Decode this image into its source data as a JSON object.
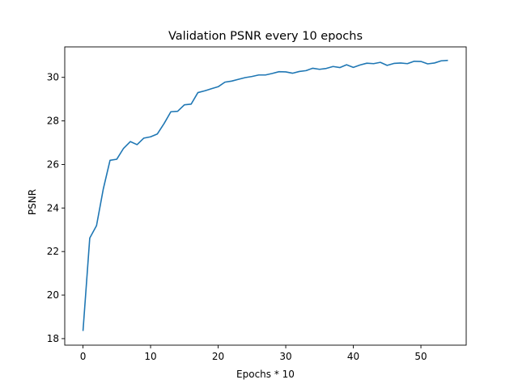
{
  "chart_data": {
    "type": "line",
    "title": "Validation PSNR every 10 epochs",
    "xlabel": "Epochs * 10",
    "ylabel": "PSNR",
    "xlim": [
      -2.7,
      56.7
    ],
    "ylim": [
      17.7,
      31.4
    ],
    "x_ticks": [
      0,
      10,
      20,
      30,
      40,
      50
    ],
    "y_ticks": [
      18,
      20,
      22,
      24,
      26,
      28,
      30
    ],
    "grid": false,
    "line_color": "#1f77b4",
    "series": [
      {
        "x": [
          0,
          1,
          2,
          3,
          4,
          5,
          6,
          7,
          8,
          9,
          10,
          11,
          12,
          13,
          14,
          15,
          16,
          17,
          18,
          19,
          20,
          21,
          22,
          23,
          24,
          25,
          26,
          27,
          28,
          29,
          30,
          31,
          32,
          33,
          34,
          35,
          36,
          37,
          38,
          39,
          40,
          41,
          42,
          43,
          44,
          45,
          46,
          47,
          48,
          49,
          50,
          51,
          52,
          53,
          54
        ],
        "values": [
          18.35,
          22.62,
          23.19,
          24.87,
          26.19,
          26.24,
          26.74,
          27.05,
          26.91,
          27.21,
          27.27,
          27.4,
          27.88,
          28.42,
          28.44,
          28.74,
          28.77,
          29.3,
          29.38,
          29.48,
          29.57,
          29.78,
          29.83,
          29.91,
          29.99,
          30.04,
          30.11,
          30.11,
          30.18,
          30.26,
          30.25,
          30.19,
          30.27,
          30.31,
          30.42,
          30.37,
          30.41,
          30.5,
          30.45,
          30.58,
          30.46,
          30.57,
          30.65,
          30.63,
          30.69,
          30.55,
          30.64,
          30.66,
          30.63,
          30.74,
          30.73,
          30.62,
          30.66,
          30.76,
          30.78
        ]
      }
    ]
  }
}
